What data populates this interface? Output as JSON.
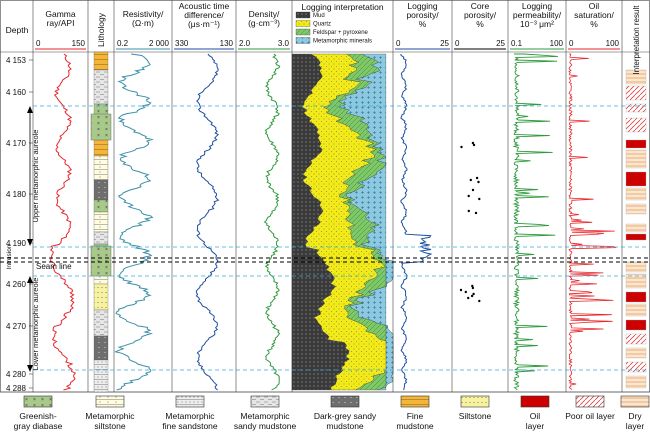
{
  "chart_data": {
    "type": "well-log",
    "depth_label": "Depth",
    "depth_ticks": [
      "4 153",
      "4 160",
      "4 170",
      "4 180",
      "4 190",
      "4 260",
      "4 270",
      "4 280",
      "4 288"
    ],
    "seam_line_label": "Seam line",
    "zone_labels": {
      "upper": "Upper metamorphic aureole",
      "intrusion": "Intrusion",
      "lower": "Lower metamorphic aureole"
    },
    "tracks": [
      {
        "key": "gr",
        "title": "Gamma ray/API",
        "min": "0",
        "max": "150",
        "color": "#e8262b"
      },
      {
        "key": "lith",
        "title": "Lithology"
      },
      {
        "key": "res",
        "title": "Resistivity/ (Ω·m)",
        "min": "0.2",
        "max": "2 000",
        "color": "#3a8fa8"
      },
      {
        "key": "ac",
        "title": "Acoustic time difference/ (μs·m⁻¹)",
        "min": "330",
        "max": "130",
        "color": "#1f4fa0"
      },
      {
        "key": "den",
        "title": "Density/ (g·cm⁻³)",
        "min": "2.0",
        "max": "3.0",
        "color": "#2e9a3c"
      },
      {
        "key": "interp",
        "title": "Logging interpretation"
      },
      {
        "key": "por",
        "title": "Logging porosity/ %",
        "min": "0",
        "max": "25",
        "color": "#1f4fa0"
      },
      {
        "key": "core",
        "title": "Core porosity/ %",
        "min": "0",
        "max": "25",
        "color": "#000000"
      },
      {
        "key": "perm",
        "title": "Logging permeability/ 10⁻³ μm²",
        "min": "0.1",
        "max": "100",
        "color": "#2e9a3c"
      },
      {
        "key": "oil",
        "title": "Oil saturation/ %",
        "min": "0",
        "max": "100",
        "color": "#e8262b"
      },
      {
        "key": "result",
        "title": "Interpretation result"
      }
    ],
    "interp_legend": [
      "Mud",
      "Quartz",
      "Feldspar + pyroxene",
      "Metamorphic minerals"
    ],
    "legend": [
      {
        "label": "Greenish-gray diabase",
        "pattern": "diabase"
      },
      {
        "label": "Metamorphic siltstone",
        "pattern": "msilt"
      },
      {
        "label": "Metamorphic fine sandstone",
        "pattern": "msand"
      },
      {
        "label": "Metamorphic sandy mudstone",
        "pattern": "msmud"
      },
      {
        "label": "Dark-grey sandy mudstone",
        "pattern": "dgmud"
      },
      {
        "label": "Fine mudstone",
        "pattern": "fmud"
      },
      {
        "label": "Siltstone",
        "pattern": "silt"
      },
      {
        "label": "Oil layer",
        "pattern": "oil"
      },
      {
        "label": "Poor oil layer",
        "pattern": "poor"
      },
      {
        "label": "Dry layer",
        "pattern": "dry"
      }
    ],
    "colors": {
      "mud": "#3a3a3a",
      "quartz": "#f2ea1a",
      "feldspar": "#7ec86a",
      "meta": "#8cc8e0",
      "guide": "#3aaad8",
      "seam": "#000000"
    }
  }
}
